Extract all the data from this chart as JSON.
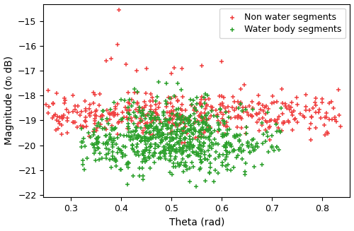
{
  "title": "",
  "xlabel": "Theta (rad)",
  "ylabel": "Magnitude (σ₀ dB)",
  "xlim": [
    0.245,
    0.855
  ],
  "ylim": [
    -22.1,
    -14.3
  ],
  "yticks": [
    -22,
    -21,
    -20,
    -19,
    -18,
    -17,
    -16,
    -15
  ],
  "xticks": [
    0.3,
    0.4,
    0.5,
    0.6,
    0.7,
    0.8
  ],
  "non_water_color": "#f04040",
  "water_color": "#2ca02c",
  "legend_labels": [
    "Non water segments",
    "Water body segments"
  ],
  "marker_size": 18,
  "marker": "+"
}
